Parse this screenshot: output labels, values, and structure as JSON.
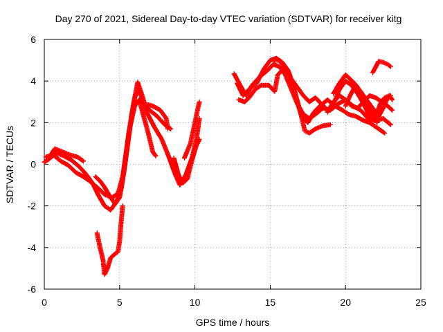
{
  "chart_data": {
    "type": "scatter",
    "title": "Day 270 of 2021, Sidereal Day-to-day VTEC variation (SDTVAR) for receiver kitg",
    "xlabel": "GPS time / hours",
    "ylabel": "SDTVAR / TECUs",
    "xlim": [
      0,
      25
    ],
    "ylim": [
      -6,
      6
    ],
    "xticks": [
      0,
      5,
      10,
      15,
      20,
      25
    ],
    "yticks": [
      -6,
      -4,
      -2,
      0,
      2,
      4,
      6
    ],
    "grid": true,
    "marker": "+",
    "color": "#ff0000",
    "series": [
      {
        "name": "track-1",
        "points": [
          [
            0.0,
            0.1
          ],
          [
            0.4,
            0.3
          ],
          [
            0.8,
            0.55
          ],
          [
            1.3,
            0.4
          ],
          [
            1.8,
            0.2
          ],
          [
            2.3,
            -0.1
          ],
          [
            2.8,
            -0.5
          ],
          [
            3.2,
            -0.9
          ],
          [
            3.6,
            -1.5
          ],
          [
            4.0,
            -2.0
          ],
          [
            4.4,
            -2.2
          ],
          [
            4.8,
            -1.8
          ],
          [
            5.1,
            -1.2
          ],
          [
            5.4,
            0.2
          ],
          [
            5.7,
            1.8
          ],
          [
            6.0,
            3.2
          ],
          [
            6.2,
            3.95
          ],
          [
            6.5,
            3.3
          ],
          [
            6.8,
            2.5
          ],
          [
            7.3,
            1.8
          ],
          [
            7.8,
            1.2
          ],
          [
            8.3,
            0.3
          ],
          [
            8.7,
            -0.5
          ],
          [
            9.0,
            -1.0
          ],
          [
            9.4,
            -0.5
          ],
          [
            9.8,
            0.3
          ],
          [
            10.1,
            1.2
          ],
          [
            10.3,
            2.2
          ]
        ]
      },
      {
        "name": "track-2",
        "points": [
          [
            0.2,
            0.2
          ],
          [
            0.7,
            0.75
          ],
          [
            1.2,
            0.6
          ],
          [
            1.7,
            0.45
          ],
          [
            2.2,
            0.35
          ],
          [
            2.6,
            0.15
          ]
        ]
      },
      {
        "name": "track-3",
        "points": [
          [
            0.1,
            0.35
          ],
          [
            0.6,
            0.45
          ],
          [
            1.1,
            0.15
          ],
          [
            1.6,
            -0.05
          ],
          [
            2.1,
            -0.4
          ],
          [
            2.6,
            -0.6
          ],
          [
            3.0,
            -0.8
          ],
          [
            3.5,
            -1.1
          ],
          [
            4.0,
            -1.45
          ],
          [
            4.5,
            -1.6
          ],
          [
            4.9,
            -1.4
          ],
          [
            5.2,
            -0.6
          ],
          [
            5.5,
            0.9
          ],
          [
            5.8,
            2.4
          ],
          [
            6.0,
            3.2
          ],
          [
            6.3,
            3.6
          ],
          [
            6.6,
            2.9
          ],
          [
            7.0,
            2.6
          ],
          [
            7.5,
            2.3
          ],
          [
            8.0,
            1.9
          ],
          [
            8.4,
            1.7
          ]
        ]
      },
      {
        "name": "track-4",
        "points": [
          [
            3.4,
            -0.6
          ],
          [
            3.7,
            -0.8
          ],
          [
            4.0,
            -1.1
          ],
          [
            4.4,
            -1.6
          ],
          [
            4.7,
            -1.9
          ],
          [
            5.0,
            -1.6
          ],
          [
            5.3,
            -0.3
          ],
          [
            5.6,
            1.5
          ],
          [
            6.0,
            2.8
          ],
          [
            6.3,
            3.1
          ],
          [
            6.7,
            2.9
          ],
          [
            7.2,
            2.8
          ],
          [
            7.7,
            2.6
          ],
          [
            8.1,
            2.2
          ],
          [
            8.2,
            1.7
          ]
        ]
      },
      {
        "name": "track-5",
        "points": [
          [
            3.5,
            -3.3
          ],
          [
            3.7,
            -4.0
          ],
          [
            3.9,
            -4.6
          ],
          [
            4.0,
            -5.3
          ],
          [
            4.2,
            -5.0
          ],
          [
            4.4,
            -4.5
          ],
          [
            4.7,
            -4.3
          ],
          [
            4.9,
            -4.2
          ],
          [
            5.0,
            -3.7
          ],
          [
            5.1,
            -2.8
          ],
          [
            5.2,
            -2.0
          ]
        ]
      },
      {
        "name": "track-6",
        "points": [
          [
            6.3,
            3.1
          ],
          [
            6.6,
            2.3
          ],
          [
            6.9,
            1.5
          ],
          [
            7.2,
            0.6
          ],
          [
            7.4,
            0.4
          ]
        ]
      },
      {
        "name": "track-7",
        "points": [
          [
            8.6,
            0.3
          ],
          [
            8.9,
            -0.5
          ],
          [
            9.2,
            -0.9
          ],
          [
            9.5,
            -0.7
          ],
          [
            9.8,
            0.2
          ],
          [
            10.1,
            0.9
          ],
          [
            10.3,
            1.2
          ]
        ]
      },
      {
        "name": "track-8",
        "points": [
          [
            9.3,
            0.3
          ],
          [
            9.7,
            1.0
          ],
          [
            10.0,
            2.0
          ],
          [
            10.2,
            2.7
          ],
          [
            10.3,
            3.0
          ]
        ]
      },
      {
        "name": "track-9",
        "points": [
          [
            12.6,
            4.35
          ],
          [
            13.0,
            3.8
          ],
          [
            13.4,
            3.3
          ],
          [
            13.8,
            3.8
          ],
          [
            14.3,
            4.2
          ],
          [
            14.8,
            4.5
          ],
          [
            15.2,
            4.8
          ],
          [
            15.6,
            4.7
          ],
          [
            16.0,
            4.3
          ],
          [
            16.4,
            3.6
          ],
          [
            16.8,
            2.9
          ],
          [
            17.2,
            2.4
          ],
          [
            17.6,
            2.2
          ],
          [
            18.0,
            2.4
          ],
          [
            18.5,
            2.7
          ],
          [
            19.0,
            2.6
          ],
          [
            19.5,
            2.9
          ],
          [
            20.0,
            3.1
          ],
          [
            20.5,
            2.8
          ],
          [
            21.0,
            2.6
          ],
          [
            21.5,
            2.2
          ],
          [
            22.0,
            2.1
          ],
          [
            22.5,
            2.2
          ],
          [
            23.0,
            1.9
          ]
        ]
      },
      {
        "name": "track-10",
        "points": [
          [
            12.8,
            3.9
          ],
          [
            13.2,
            3.3
          ],
          [
            13.6,
            3.6
          ],
          [
            14.1,
            3.9
          ],
          [
            14.6,
            4.6
          ],
          [
            15.0,
            5.0
          ],
          [
            15.4,
            5.1
          ],
          [
            15.8,
            4.9
          ],
          [
            16.2,
            4.5
          ],
          [
            16.6,
            3.6
          ],
          [
            17.0,
            2.5
          ],
          [
            17.3,
            1.6
          ],
          [
            17.6,
            1.5
          ],
          [
            18.0,
            1.7
          ],
          [
            18.5,
            1.85
          ],
          [
            19.0,
            1.9
          ]
        ]
      },
      {
        "name": "track-11",
        "points": [
          [
            12.9,
            3.1
          ],
          [
            13.3,
            3.0
          ],
          [
            13.6,
            3.2
          ],
          [
            14.0,
            3.6
          ],
          [
            14.4,
            3.8
          ],
          [
            14.9,
            3.8
          ],
          [
            15.3,
            3.5
          ],
          [
            15.5,
            4.3
          ],
          [
            15.9,
            4.6
          ],
          [
            16.3,
            4.3
          ],
          [
            16.7,
            3.2
          ],
          [
            17.1,
            2.3
          ],
          [
            17.5,
            2.0
          ],
          [
            17.9,
            2.5
          ],
          [
            18.3,
            2.8
          ],
          [
            18.8,
            3.1
          ],
          [
            19.3,
            2.8
          ],
          [
            19.8,
            2.6
          ],
          [
            20.2,
            2.4
          ],
          [
            20.7,
            2.3
          ],
          [
            21.2,
            2.1
          ],
          [
            21.6,
            2.0
          ],
          [
            22.0,
            1.8
          ],
          [
            22.4,
            1.6
          ],
          [
            22.6,
            1.5
          ]
        ]
      },
      {
        "name": "track-12",
        "points": [
          [
            15.2,
            5.0
          ],
          [
            15.6,
            5.0
          ],
          [
            16.0,
            4.6
          ],
          [
            16.4,
            4.1
          ],
          [
            16.8,
            3.7
          ],
          [
            17.2,
            3.3
          ],
          [
            17.6,
            3.0
          ],
          [
            18.0,
            3.2
          ],
          [
            18.4,
            2.9
          ],
          [
            18.8,
            2.6
          ],
          [
            19.2,
            2.9
          ],
          [
            19.6,
            3.6
          ],
          [
            20.0,
            4.0
          ],
          [
            20.4,
            3.8
          ],
          [
            20.8,
            3.4
          ],
          [
            21.2,
            2.9
          ],
          [
            21.6,
            2.3
          ],
          [
            21.9,
            2.1
          ],
          [
            22.3,
            2.9
          ],
          [
            22.6,
            3.2
          ],
          [
            22.9,
            3.3
          ],
          [
            23.1,
            3.1
          ]
        ]
      },
      {
        "name": "track-13",
        "points": [
          [
            18.8,
            2.5
          ],
          [
            19.2,
            3.0
          ],
          [
            19.6,
            3.3
          ],
          [
            20.0,
            3.1
          ],
          [
            20.4,
            2.8
          ],
          [
            20.8,
            2.7
          ],
          [
            21.2,
            3.0
          ],
          [
            21.6,
            3.3
          ],
          [
            22.0,
            3.2
          ],
          [
            22.4,
            3.0
          ],
          [
            22.8,
            2.8
          ],
          [
            23.1,
            2.6
          ]
        ]
      },
      {
        "name": "track-14",
        "points": [
          [
            19.2,
            3.4
          ],
          [
            19.6,
            3.9
          ],
          [
            20.0,
            4.3
          ],
          [
            20.3,
            4.1
          ],
          [
            20.7,
            3.8
          ],
          [
            21.1,
            3.4
          ],
          [
            21.5,
            3.0
          ],
          [
            21.9,
            2.6
          ],
          [
            22.2,
            2.3
          ],
          [
            22.5,
            2.7
          ],
          [
            22.8,
            3.2
          ],
          [
            23.0,
            3.3
          ]
        ]
      },
      {
        "name": "track-15",
        "points": [
          [
            20.0,
            2.8
          ],
          [
            20.3,
            3.3
          ],
          [
            20.6,
            3.7
          ],
          [
            21.0,
            3.5
          ],
          [
            21.4,
            3.0
          ],
          [
            21.8,
            2.4
          ],
          [
            22.1,
            2.0
          ]
        ]
      },
      {
        "name": "track-16",
        "points": [
          [
            21.8,
            4.4
          ],
          [
            22.2,
            4.95
          ],
          [
            22.5,
            4.9
          ],
          [
            22.8,
            4.8
          ],
          [
            23.0,
            4.7
          ]
        ]
      }
    ]
  }
}
